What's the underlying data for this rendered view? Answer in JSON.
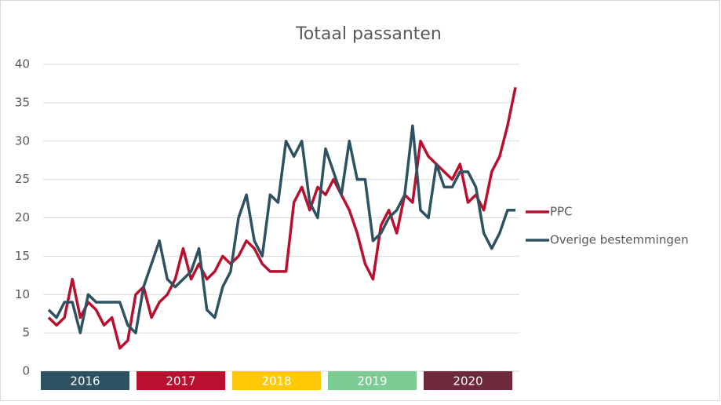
{
  "chart_data": {
    "type": "line",
    "title": "Totaal passanten",
    "ylim": [
      0,
      40
    ],
    "yticks": [
      0,
      5,
      10,
      15,
      20,
      25,
      30,
      35,
      40
    ],
    "grid": true,
    "legend": "right",
    "year_bands": [
      "2016",
      "2017",
      "2018",
      "2019",
      "2020"
    ],
    "band_colors": [
      "#2e5261",
      "#b8102e",
      "#ffc906",
      "#7acc93",
      "#6e2a3c"
    ],
    "series": [
      {
        "name": "PPC",
        "color": "#b8102e",
        "values": [
          7,
          6,
          7,
          12,
          7,
          9,
          8,
          6,
          7,
          3,
          4,
          10,
          11,
          7,
          9,
          10,
          12,
          16,
          12,
          14,
          12,
          13,
          15,
          14,
          15,
          17,
          16,
          14,
          13,
          13,
          13,
          22,
          24,
          21,
          24,
          23,
          25,
          23,
          21,
          18,
          14,
          12,
          19,
          21,
          18,
          23,
          22,
          30,
          28,
          27,
          26,
          25,
          27,
          22,
          23,
          21,
          26,
          28,
          32,
          37
        ]
      },
      {
        "name": "Overige bestemmingen",
        "color": "#2e5261",
        "values": [
          8,
          7,
          9,
          9,
          5,
          10,
          9,
          9,
          9,
          9,
          6,
          5,
          11,
          14,
          17,
          12,
          11,
          12,
          13,
          16,
          8,
          7,
          11,
          13,
          20,
          23,
          17,
          15,
          23,
          22,
          30,
          28,
          30,
          22,
          20,
          29,
          26,
          23,
          30,
          25,
          25,
          17,
          18,
          20,
          21,
          23,
          32,
          21,
          20,
          27,
          24,
          24,
          26,
          26,
          24,
          18,
          16,
          18,
          21,
          21
        ]
      }
    ]
  }
}
